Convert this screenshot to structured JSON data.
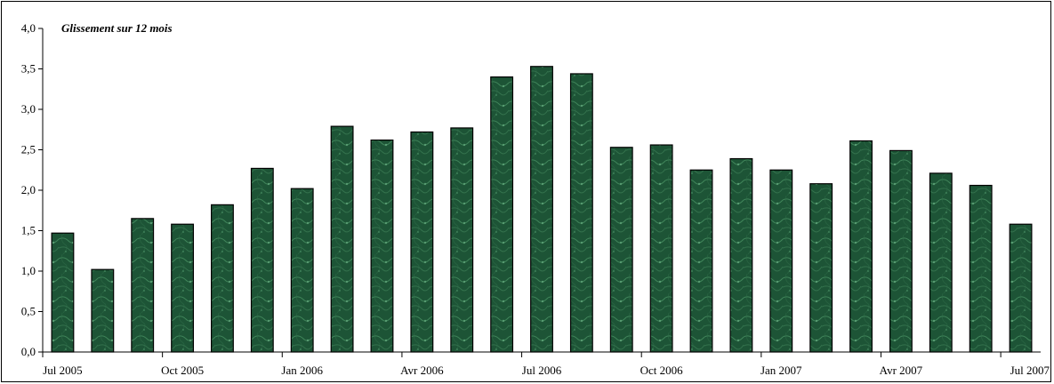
{
  "chart_data": {
    "type": "bar",
    "title": "Glissement sur 12 mois",
    "xlabel": "",
    "ylabel": "",
    "ylim": [
      0,
      4
    ],
    "yticks": [
      "0,0",
      "0,5",
      "1,0",
      "1,5",
      "2,0",
      "2,5",
      "3,0",
      "3,5",
      "4,0"
    ],
    "xticks": [
      "Jul 2005",
      "Oct 2005",
      "Jan 2006",
      "Avr 2006",
      "Jul 2006",
      "Oct 2006",
      "Jan 2007",
      "Avr 2007",
      "Jul 2007"
    ],
    "categories": [
      "2005-07",
      "2005-08",
      "2005-09",
      "2005-10",
      "2005-11",
      "2005-12",
      "2006-01",
      "2006-02",
      "2006-03",
      "2006-04",
      "2006-05",
      "2006-06",
      "2006-07",
      "2006-08",
      "2006-09",
      "2006-10",
      "2006-11",
      "2006-12",
      "2007-01",
      "2007-02",
      "2007-03",
      "2007-04",
      "2007-05",
      "2007-06",
      "2007-07"
    ],
    "values": [
      1.47,
      1.02,
      1.65,
      1.58,
      1.82,
      2.27,
      2.02,
      2.79,
      2.62,
      2.72,
      2.77,
      3.4,
      3.53,
      3.44,
      2.53,
      2.56,
      2.25,
      2.39,
      2.25,
      2.08,
      2.61,
      2.49,
      2.21,
      2.06,
      1.58
    ],
    "bar_color": "#1f5a38",
    "grid": false,
    "legend": "none"
  }
}
